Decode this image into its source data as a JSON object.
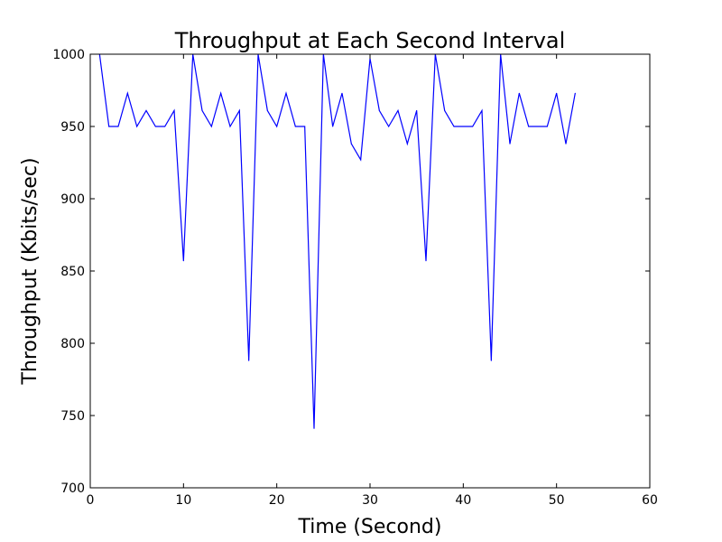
{
  "chart_data": {
    "type": "line",
    "title": "Throughput at Each Second Interval",
    "xlabel": "Time (Second)",
    "ylabel": "Throughput (Kbits/sec)",
    "xlim": [
      0,
      60
    ],
    "ylim": [
      700,
      1000
    ],
    "xticks": [
      "0",
      "10",
      "20",
      "30",
      "40",
      "50",
      "60"
    ],
    "yticks": [
      "700",
      "750",
      "800",
      "850",
      "900",
      "950",
      "1000"
    ],
    "grid": false,
    "line_color": "#0000ff",
    "series": [
      {
        "x": [
          1,
          2,
          3,
          4,
          5,
          6,
          7,
          8,
          9,
          10,
          11,
          12,
          13,
          14,
          15,
          16,
          17,
          18,
          19,
          20,
          21,
          22,
          23,
          24,
          25,
          26,
          27,
          28,
          29,
          30,
          31,
          32,
          33,
          34,
          35,
          36,
          37,
          38,
          39,
          40,
          41,
          42,
          43,
          44,
          45,
          46,
          47,
          48,
          49,
          50,
          51,
          52
        ],
        "values": [
          1000,
          950,
          950,
          973,
          950,
          961,
          950,
          950,
          961,
          857,
          1000,
          961,
          950,
          973,
          950,
          961,
          788,
          1000,
          961,
          950,
          973,
          950,
          950,
          741,
          1000,
          950,
          973,
          938,
          927,
          997,
          961,
          950,
          961,
          938,
          961,
          857,
          1000,
          961,
          950,
          950,
          950,
          961,
          788,
          1000,
          938,
          973,
          950,
          950,
          950,
          973,
          938,
          973
        ]
      }
    ]
  }
}
